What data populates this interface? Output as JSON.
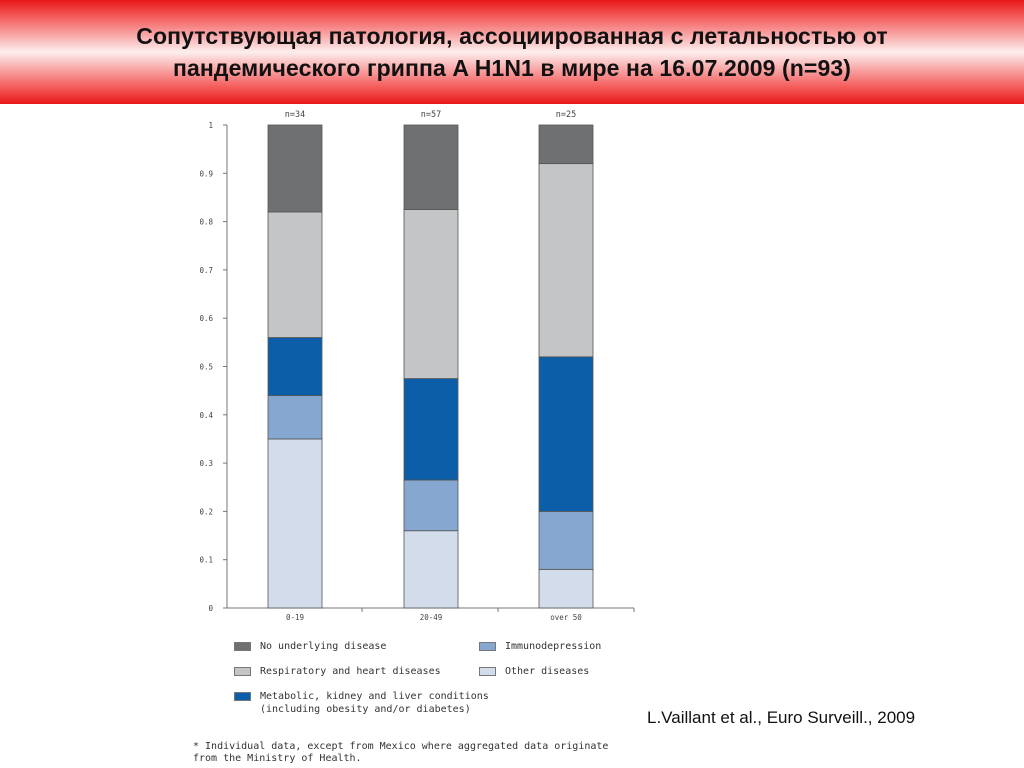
{
  "title": {
    "line1": "Сопутствующая патология, ассоциированная с летальностью от",
    "line2": "пандемического гриппа A H1N1 в мире на 16.07.2009 (n=93)"
  },
  "chart_data": {
    "type": "bar",
    "stacked": true,
    "categories": [
      "0-19",
      "20-49",
      "over 50"
    ],
    "n_labels": [
      "n=34",
      "n=57",
      "n=25"
    ],
    "y_ticks": [
      "0",
      "0.1",
      "0.2",
      "0.3",
      "0.4",
      "0.5",
      "0.6",
      "0.7",
      "0.8",
      "0.9",
      "1"
    ],
    "ylim": [
      0,
      1
    ],
    "series": [
      {
        "name": "Other diseases",
        "color": "#d2dcea",
        "values": [
          0.35,
          0.16,
          0.08
        ]
      },
      {
        "name": "Immunodepression",
        "color": "#86a7d0",
        "values": [
          0.09,
          0.105,
          0.12
        ]
      },
      {
        "name": "Metabolic, kidney and liver conditions (including obesity and/or diabetes)",
        "color": "#0d5ea8",
        "values": [
          0.12,
          0.21,
          0.32
        ]
      },
      {
        "name": "Respiratory and heart diseases",
        "color": "#c4c5c7",
        "values": [
          0.26,
          0.35,
          0.4
        ]
      },
      {
        "name": "No underlying disease",
        "color": "#6f7072",
        "values": [
          0.18,
          0.175,
          0.08
        ]
      }
    ]
  },
  "legend": {
    "no_underlying": "No underlying disease",
    "respiratory": "Respiratory and heart diseases",
    "metabolic_line1": "Metabolic, kidney and liver conditions",
    "metabolic_line2": "(including obesity and/or diabetes)",
    "immuno": "Immunodepression",
    "other": "Other diseases"
  },
  "footnote": {
    "line1": "* Individual data, except from Mexico where aggregated data originate",
    "line2": "from the Ministry of Health."
  },
  "citation": "L.Vaillant et al., Euro Surveill., 2009"
}
